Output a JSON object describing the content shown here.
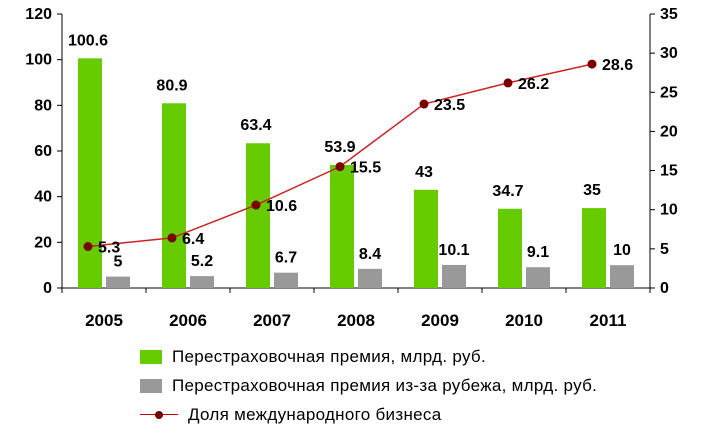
{
  "colors": {
    "premium": "#66cc00",
    "foreign_premium": "#999999",
    "share_line": "#cc2222",
    "share_marker": "#7a0000",
    "axis": "#000000"
  },
  "chart_data": {
    "type": "bar",
    "categories": [
      "2005",
      "2006",
      "2007",
      "2008",
      "2009",
      "2010",
      "2011"
    ],
    "series": [
      {
        "name": "Перестраховочная премия, млрд. руб.",
        "type": "bar",
        "axis": "left",
        "values": [
          100.6,
          80.9,
          63.4,
          53.9,
          43,
          34.7,
          35
        ],
        "labels": [
          "100.6",
          "80.9",
          "63.4",
          "53.9",
          "43",
          "34.7",
          "35"
        ]
      },
      {
        "name": "Перестраховочная премия из-за рубежа, млрд. руб.",
        "type": "bar",
        "axis": "left",
        "values": [
          5,
          5.2,
          6.7,
          8.4,
          10.1,
          9.1,
          10
        ],
        "labels": [
          "5",
          "5.2",
          "6.7",
          "8.4",
          "10.1",
          "9.1",
          "10"
        ]
      },
      {
        "name": "Доля международного бизнеса",
        "type": "line",
        "axis": "right",
        "values": [
          5.3,
          6.4,
          10.6,
          15.5,
          23.5,
          26.2,
          28.6
        ],
        "labels": [
          "5.3",
          "6.4",
          "10.6",
          "15.5",
          "23.5",
          "26.2",
          "28.6"
        ]
      }
    ],
    "y_left": {
      "range": [
        0,
        120
      ],
      "ticks": [
        "0",
        "20",
        "40",
        "60",
        "80",
        "100",
        "120"
      ]
    },
    "y_right": {
      "range": [
        0,
        35
      ],
      "ticks": [
        "0",
        "5",
        "10",
        "15",
        "20",
        "25",
        "30",
        "35"
      ]
    },
    "grid": false,
    "legend": "bottom"
  }
}
